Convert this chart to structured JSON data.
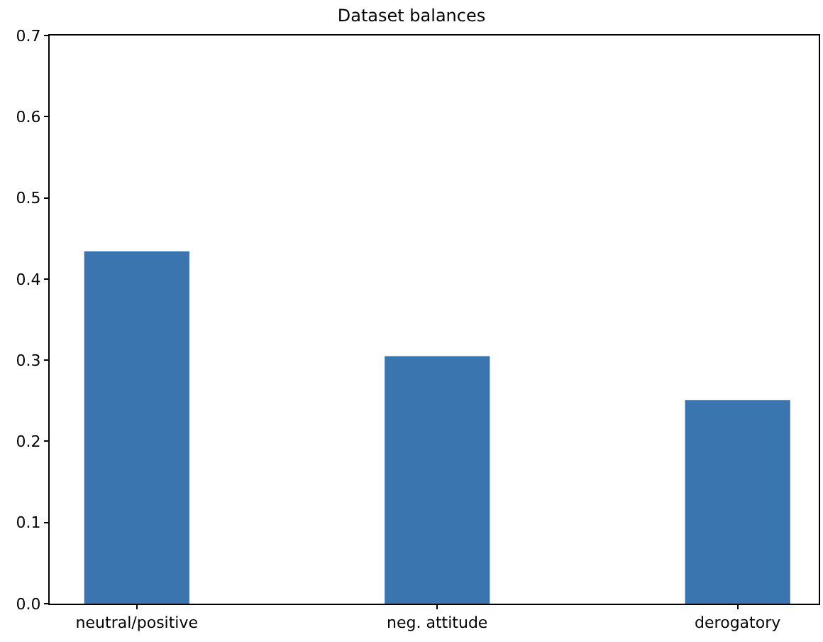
{
  "chart_data": {
    "type": "bar",
    "title": "Dataset balances",
    "categories": [
      "neutral/positive",
      "neg. attitude",
      "derogatory"
    ],
    "values": [
      0.434,
      0.305,
      0.251
    ],
    "color": "#3a75af",
    "ylim": [
      0,
      0.7
    ],
    "yticks": [
      {
        "value": 0,
        "label": "0.0"
      },
      {
        "value": 0.1,
        "label": "0.1"
      },
      {
        "value": 0.2,
        "label": "0.2"
      },
      {
        "value": 0.3,
        "label": "0.3"
      },
      {
        "value": 0.4,
        "label": "0.4"
      },
      {
        "value": 0.5,
        "label": "0.5"
      },
      {
        "value": 0.6,
        "label": "0.6"
      },
      {
        "value": 0.7,
        "label": "0.7"
      }
    ],
    "grid": false
  }
}
